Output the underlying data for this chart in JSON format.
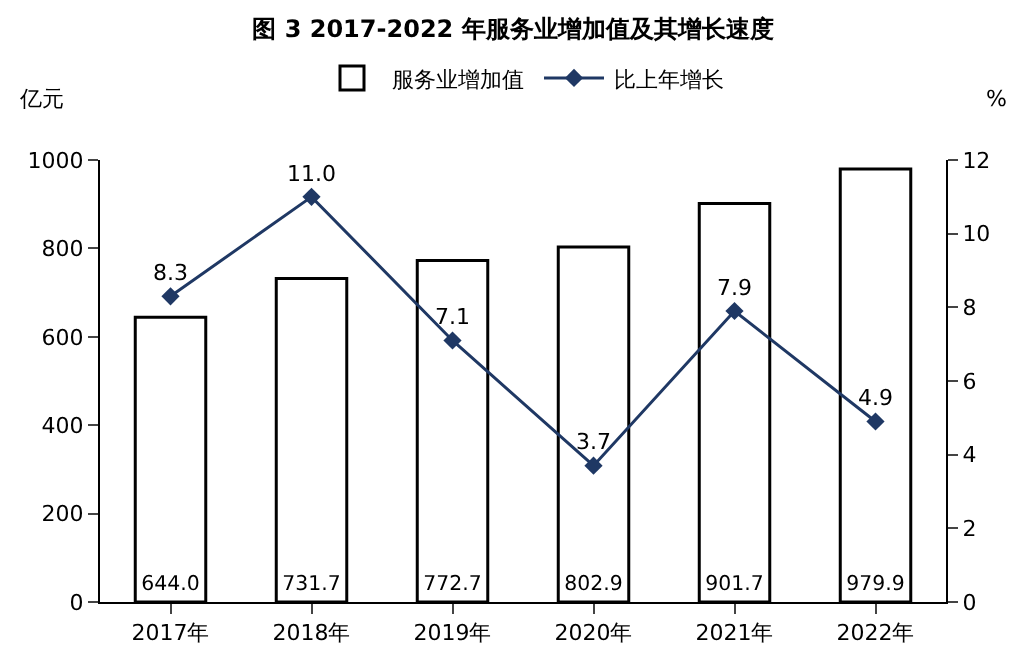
{
  "chart_data": {
    "type": "bar",
    "title": "图 3 2017-2022 年服务业增加值及其增长速度",
    "ylabel": "亿元",
    "y2label": "%",
    "categories": [
      "2017年",
      "2018年",
      "2019年",
      "2020年",
      "2021年",
      "2022年"
    ],
    "series": [
      {
        "name": "服务业增加值",
        "color": "#ffffff",
        "values": [
          644.0,
          731.7,
          772.7,
          802.9,
          901.7,
          979.9
        ],
        "value_labels": [
          "644.0",
          "731.7",
          "772.7",
          "802.9",
          "901.7",
          "979.9"
        ]
      },
      {
        "name": "比上年增长",
        "type": "line",
        "axis": "y2",
        "color": "#1f3864",
        "marker": "diamond",
        "values": [
          8.3,
          11.0,
          7.1,
          3.7,
          7.9,
          4.9
        ],
        "value_labels": [
          "8.3",
          "11.0",
          "7.1",
          "3.7",
          "7.9",
          "4.9"
        ]
      }
    ],
    "ylim": [
      0,
      1000
    ],
    "yticks": [
      0,
      200,
      400,
      600,
      800,
      1000
    ],
    "y2lim": [
      0,
      12
    ],
    "y2ticks": [
      0,
      2,
      4,
      6,
      8,
      10,
      12
    ],
    "legend": "top"
  }
}
